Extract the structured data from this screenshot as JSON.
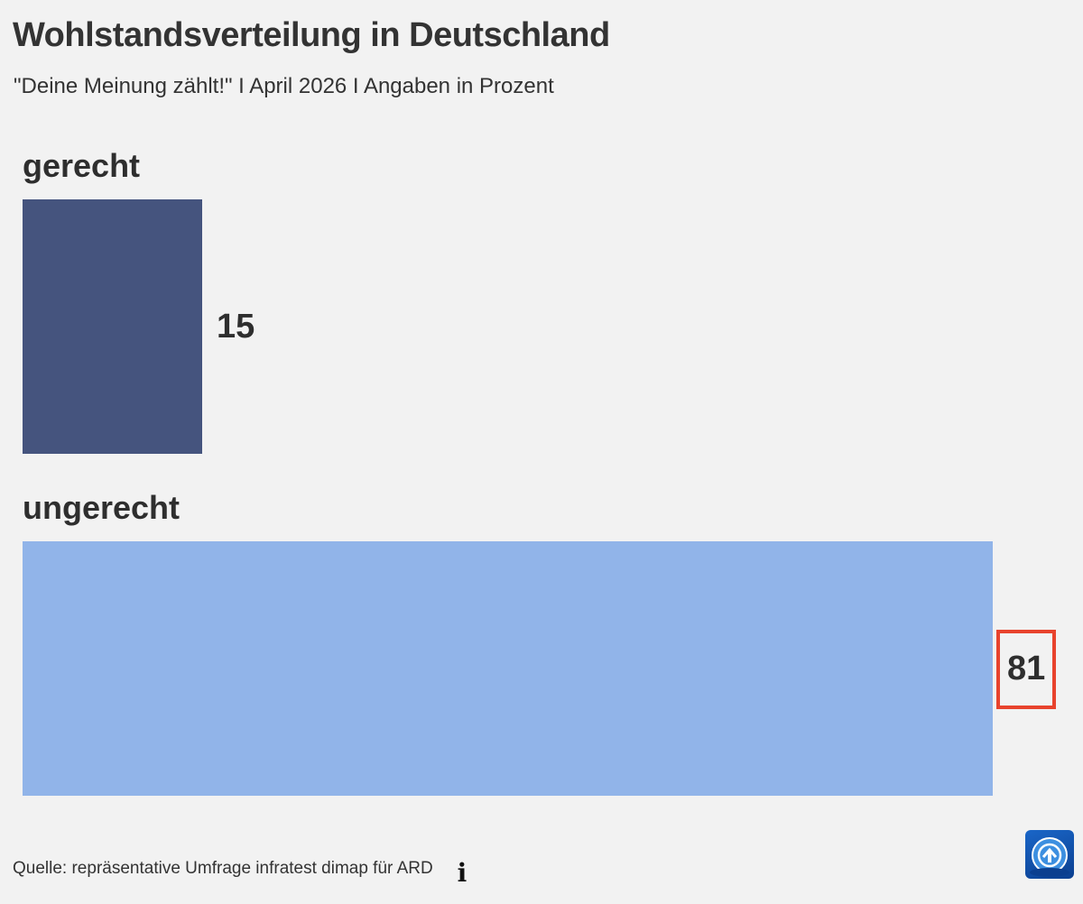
{
  "title": "Wohlstandsverteilung in Deutschland",
  "subtitle": "\"Deine Meinung zählt!\" I April 2026 I Angaben in Prozent",
  "source": "Quelle: repräsentative Umfrage infratest dimap für ARD",
  "info_icon": "info-icon",
  "logo_icon": "tagesschau-logo-icon",
  "colors": {
    "background": "#f2f2f2",
    "gerecht": "#45547e",
    "ungerecht": "#91b4e9",
    "highlight": "#e8432d"
  },
  "chart_data": {
    "type": "bar",
    "orientation": "horizontal",
    "title": "Wohlstandsverteilung in Deutschland",
    "subtitle": "\"Deine Meinung zählt!\" I April 2026 I Angaben in Prozent",
    "categories": [
      "gerecht",
      "ungerecht"
    ],
    "values": [
      15,
      81
    ],
    "value_labels": [
      "15",
      "81"
    ],
    "highlighted": [
      false,
      true
    ],
    "colors": [
      "#45547e",
      "#91b4e9"
    ],
    "xlim": [
      0,
      81
    ],
    "grid": false,
    "legend": "none"
  }
}
